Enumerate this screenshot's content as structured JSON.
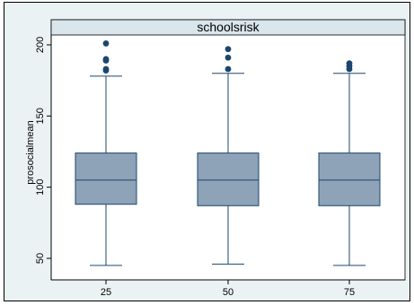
{
  "chart_data": {
    "type": "box",
    "title": "schoolsrisk",
    "ylabel": "prosocialmean",
    "xlabel": "",
    "ylim": [
      40,
      210
    ],
    "yticks": [
      "50",
      "100",
      "150",
      "200"
    ],
    "ytick_values": [
      50,
      100,
      150,
      200
    ],
    "categories": [
      "25",
      "50",
      "75"
    ],
    "boxes": [
      {
        "category": "25",
        "whisker_low": 45,
        "q1": 88,
        "median": 105,
        "q3": 124,
        "whisker_high": 178,
        "outliers": [
          201,
          190,
          189,
          183,
          182
        ]
      },
      {
        "category": "50",
        "whisker_low": 46,
        "q1": 87,
        "median": 105,
        "q3": 124,
        "whisker_high": 180,
        "outliers": [
          197,
          191,
          183
        ]
      },
      {
        "category": "75",
        "whisker_low": 45,
        "q1": 87,
        "median": 105,
        "q3": 124,
        "whisker_high": 180,
        "outliers": [
          187,
          185,
          183
        ]
      }
    ],
    "grid": false,
    "legend": "none",
    "colors": {
      "box_fill": "#8ea2b8",
      "box_stroke": "#1a476f",
      "outlier": "#1a476f",
      "panel": "#ffffff",
      "background": "#eaf2f3"
    }
  }
}
